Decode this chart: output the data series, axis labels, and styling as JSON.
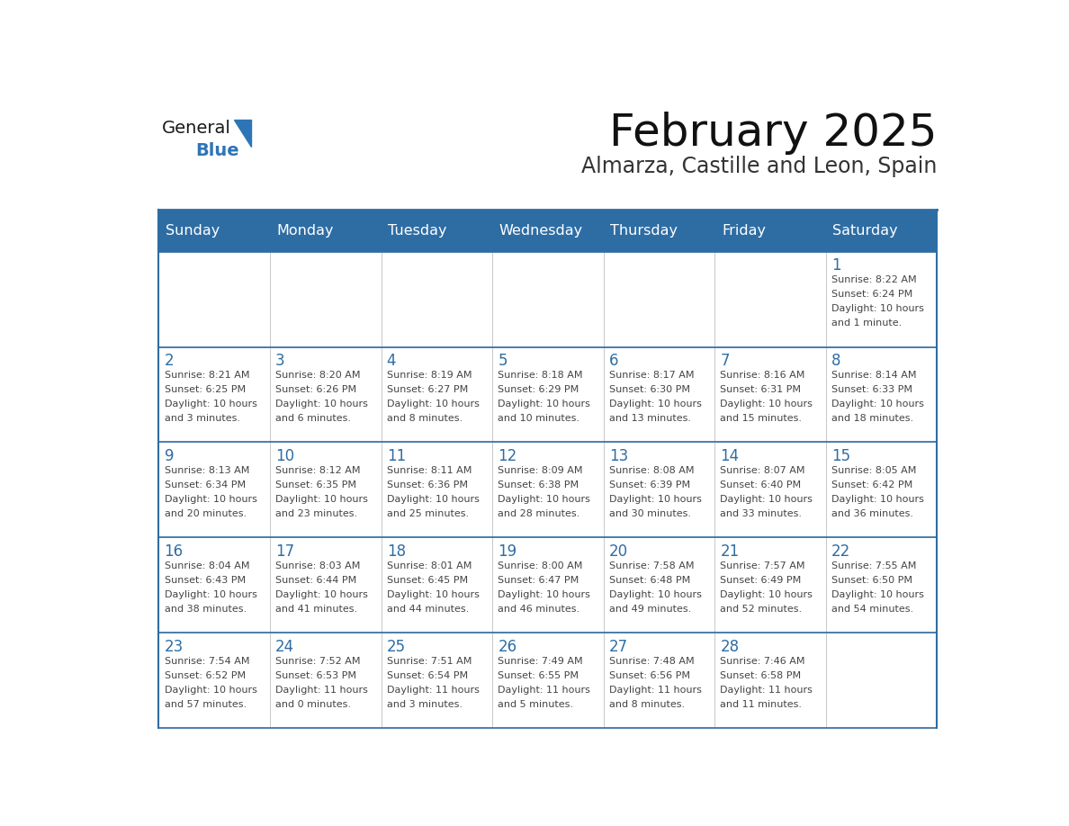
{
  "title": "February 2025",
  "subtitle": "Almarza, Castille and Leon, Spain",
  "header_bg": "#2E6DA4",
  "header_text_color": "#FFFFFF",
  "day_number_color": "#2E6DA4",
  "text_color": "#444444",
  "days_of_week": [
    "Sunday",
    "Monday",
    "Tuesday",
    "Wednesday",
    "Thursday",
    "Friday",
    "Saturday"
  ],
  "calendar_data": [
    [
      {
        "day": null,
        "info": ""
      },
      {
        "day": null,
        "info": ""
      },
      {
        "day": null,
        "info": ""
      },
      {
        "day": null,
        "info": ""
      },
      {
        "day": null,
        "info": ""
      },
      {
        "day": null,
        "info": ""
      },
      {
        "day": 1,
        "info": "Sunrise: 8:22 AM\nSunset: 6:24 PM\nDaylight: 10 hours\nand 1 minute."
      }
    ],
    [
      {
        "day": 2,
        "info": "Sunrise: 8:21 AM\nSunset: 6:25 PM\nDaylight: 10 hours\nand 3 minutes."
      },
      {
        "day": 3,
        "info": "Sunrise: 8:20 AM\nSunset: 6:26 PM\nDaylight: 10 hours\nand 6 minutes."
      },
      {
        "day": 4,
        "info": "Sunrise: 8:19 AM\nSunset: 6:27 PM\nDaylight: 10 hours\nand 8 minutes."
      },
      {
        "day": 5,
        "info": "Sunrise: 8:18 AM\nSunset: 6:29 PM\nDaylight: 10 hours\nand 10 minutes."
      },
      {
        "day": 6,
        "info": "Sunrise: 8:17 AM\nSunset: 6:30 PM\nDaylight: 10 hours\nand 13 minutes."
      },
      {
        "day": 7,
        "info": "Sunrise: 8:16 AM\nSunset: 6:31 PM\nDaylight: 10 hours\nand 15 minutes."
      },
      {
        "day": 8,
        "info": "Sunrise: 8:14 AM\nSunset: 6:33 PM\nDaylight: 10 hours\nand 18 minutes."
      }
    ],
    [
      {
        "day": 9,
        "info": "Sunrise: 8:13 AM\nSunset: 6:34 PM\nDaylight: 10 hours\nand 20 minutes."
      },
      {
        "day": 10,
        "info": "Sunrise: 8:12 AM\nSunset: 6:35 PM\nDaylight: 10 hours\nand 23 minutes."
      },
      {
        "day": 11,
        "info": "Sunrise: 8:11 AM\nSunset: 6:36 PM\nDaylight: 10 hours\nand 25 minutes."
      },
      {
        "day": 12,
        "info": "Sunrise: 8:09 AM\nSunset: 6:38 PM\nDaylight: 10 hours\nand 28 minutes."
      },
      {
        "day": 13,
        "info": "Sunrise: 8:08 AM\nSunset: 6:39 PM\nDaylight: 10 hours\nand 30 minutes."
      },
      {
        "day": 14,
        "info": "Sunrise: 8:07 AM\nSunset: 6:40 PM\nDaylight: 10 hours\nand 33 minutes."
      },
      {
        "day": 15,
        "info": "Sunrise: 8:05 AM\nSunset: 6:42 PM\nDaylight: 10 hours\nand 36 minutes."
      }
    ],
    [
      {
        "day": 16,
        "info": "Sunrise: 8:04 AM\nSunset: 6:43 PM\nDaylight: 10 hours\nand 38 minutes."
      },
      {
        "day": 17,
        "info": "Sunrise: 8:03 AM\nSunset: 6:44 PM\nDaylight: 10 hours\nand 41 minutes."
      },
      {
        "day": 18,
        "info": "Sunrise: 8:01 AM\nSunset: 6:45 PM\nDaylight: 10 hours\nand 44 minutes."
      },
      {
        "day": 19,
        "info": "Sunrise: 8:00 AM\nSunset: 6:47 PM\nDaylight: 10 hours\nand 46 minutes."
      },
      {
        "day": 20,
        "info": "Sunrise: 7:58 AM\nSunset: 6:48 PM\nDaylight: 10 hours\nand 49 minutes."
      },
      {
        "day": 21,
        "info": "Sunrise: 7:57 AM\nSunset: 6:49 PM\nDaylight: 10 hours\nand 52 minutes."
      },
      {
        "day": 22,
        "info": "Sunrise: 7:55 AM\nSunset: 6:50 PM\nDaylight: 10 hours\nand 54 minutes."
      }
    ],
    [
      {
        "day": 23,
        "info": "Sunrise: 7:54 AM\nSunset: 6:52 PM\nDaylight: 10 hours\nand 57 minutes."
      },
      {
        "day": 24,
        "info": "Sunrise: 7:52 AM\nSunset: 6:53 PM\nDaylight: 11 hours\nand 0 minutes."
      },
      {
        "day": 25,
        "info": "Sunrise: 7:51 AM\nSunset: 6:54 PM\nDaylight: 11 hours\nand 3 minutes."
      },
      {
        "day": 26,
        "info": "Sunrise: 7:49 AM\nSunset: 6:55 PM\nDaylight: 11 hours\nand 5 minutes."
      },
      {
        "day": 27,
        "info": "Sunrise: 7:48 AM\nSunset: 6:56 PM\nDaylight: 11 hours\nand 8 minutes."
      },
      {
        "day": 28,
        "info": "Sunrise: 7:46 AM\nSunset: 6:58 PM\nDaylight: 11 hours\nand 11 minutes."
      },
      {
        "day": null,
        "info": ""
      }
    ]
  ],
  "logo_general_color": "#1a1a1a",
  "logo_blue_color": "#2E75B6",
  "border_color": "#2E6DA4",
  "cell_line_color": "#BBBBBB"
}
